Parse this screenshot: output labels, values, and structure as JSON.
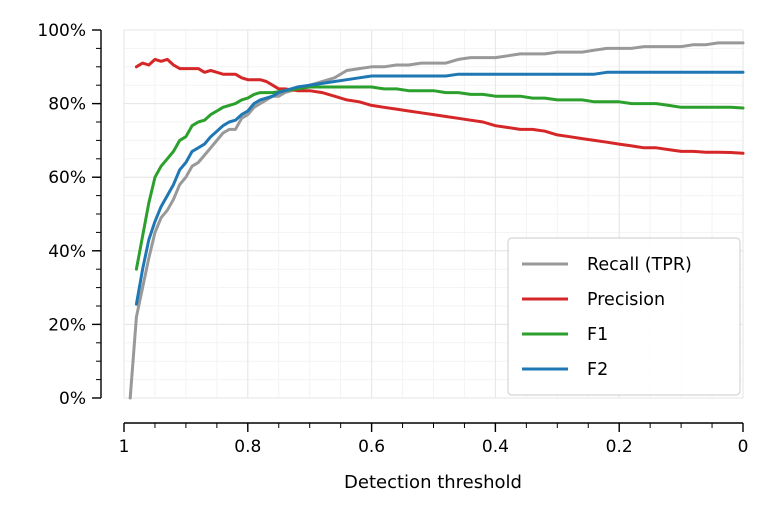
{
  "chart_data": {
    "type": "line",
    "xlabel": "Detection threshold",
    "ylabel": "",
    "xlim": [
      1,
      0
    ],
    "ylim": [
      0,
      100
    ],
    "x_reversed": true,
    "grid": true,
    "legend_position": "lower-right",
    "x_ticks": [
      1,
      0.8,
      0.6,
      0.4,
      0.2,
      0
    ],
    "x_tick_labels": [
      "1",
      "0.8",
      "0.6",
      "0.4",
      "0.2",
      "0"
    ],
    "y_ticks": [
      0,
      20,
      40,
      60,
      80,
      100
    ],
    "y_tick_labels": [
      "0%",
      "20%",
      "40%",
      "60%",
      "80%",
      "100%"
    ],
    "series": [
      {
        "name": "Recall (TPR)",
        "color": "#999999",
        "points": [
          [
            0.99,
            0
          ],
          [
            0.98,
            22
          ],
          [
            0.97,
            30
          ],
          [
            0.96,
            38
          ],
          [
            0.95,
            45
          ],
          [
            0.94,
            49
          ],
          [
            0.93,
            51
          ],
          [
            0.92,
            54
          ],
          [
            0.91,
            58
          ],
          [
            0.9,
            60
          ],
          [
            0.89,
            63
          ],
          [
            0.88,
            64
          ],
          [
            0.87,
            66
          ],
          [
            0.86,
            68
          ],
          [
            0.85,
            70
          ],
          [
            0.84,
            72
          ],
          [
            0.83,
            73
          ],
          [
            0.82,
            73
          ],
          [
            0.81,
            76
          ],
          [
            0.8,
            77
          ],
          [
            0.79,
            79
          ],
          [
            0.78,
            80
          ],
          [
            0.77,
            81
          ],
          [
            0.76,
            82
          ],
          [
            0.75,
            82
          ],
          [
            0.74,
            83
          ],
          [
            0.72,
            84
          ],
          [
            0.7,
            85
          ],
          [
            0.68,
            86
          ],
          [
            0.66,
            87
          ],
          [
            0.64,
            89
          ],
          [
            0.62,
            89.5
          ],
          [
            0.6,
            90
          ],
          [
            0.58,
            90
          ],
          [
            0.56,
            90.5
          ],
          [
            0.54,
            90.5
          ],
          [
            0.52,
            91
          ],
          [
            0.5,
            91
          ],
          [
            0.48,
            91
          ],
          [
            0.46,
            92
          ],
          [
            0.44,
            92.5
          ],
          [
            0.42,
            92.5
          ],
          [
            0.4,
            92.5
          ],
          [
            0.38,
            93
          ],
          [
            0.36,
            93.5
          ],
          [
            0.34,
            93.5
          ],
          [
            0.32,
            93.5
          ],
          [
            0.3,
            94
          ],
          [
            0.28,
            94
          ],
          [
            0.26,
            94
          ],
          [
            0.24,
            94.5
          ],
          [
            0.22,
            95
          ],
          [
            0.2,
            95
          ],
          [
            0.18,
            95
          ],
          [
            0.16,
            95.5
          ],
          [
            0.14,
            95.5
          ],
          [
            0.12,
            95.5
          ],
          [
            0.1,
            95.5
          ],
          [
            0.08,
            96
          ],
          [
            0.06,
            96
          ],
          [
            0.04,
            96.5
          ],
          [
            0.02,
            96.5
          ],
          [
            0.0,
            96.5
          ]
        ]
      },
      {
        "name": "Precision",
        "color": "#d62728",
        "points": [
          [
            0.98,
            90
          ],
          [
            0.97,
            91
          ],
          [
            0.96,
            90.5
          ],
          [
            0.95,
            92
          ],
          [
            0.94,
            91.5
          ],
          [
            0.93,
            92
          ],
          [
            0.92,
            90.5
          ],
          [
            0.91,
            89.5
          ],
          [
            0.9,
            89.5
          ],
          [
            0.89,
            89.5
          ],
          [
            0.88,
            89.5
          ],
          [
            0.87,
            88.5
          ],
          [
            0.86,
            89
          ],
          [
            0.85,
            88.5
          ],
          [
            0.84,
            88
          ],
          [
            0.83,
            88
          ],
          [
            0.82,
            88
          ],
          [
            0.81,
            87
          ],
          [
            0.8,
            86.5
          ],
          [
            0.79,
            86.5
          ],
          [
            0.78,
            86.5
          ],
          [
            0.77,
            86
          ],
          [
            0.76,
            85
          ],
          [
            0.75,
            84
          ],
          [
            0.74,
            84
          ],
          [
            0.72,
            83.5
          ],
          [
            0.7,
            83.5
          ],
          [
            0.68,
            83
          ],
          [
            0.66,
            82
          ],
          [
            0.64,
            81
          ],
          [
            0.62,
            80.5
          ],
          [
            0.6,
            79.5
          ],
          [
            0.58,
            79
          ],
          [
            0.56,
            78.5
          ],
          [
            0.54,
            78
          ],
          [
            0.52,
            77.5
          ],
          [
            0.5,
            77
          ],
          [
            0.48,
            76.5
          ],
          [
            0.46,
            76
          ],
          [
            0.44,
            75.5
          ],
          [
            0.42,
            75
          ],
          [
            0.4,
            74
          ],
          [
            0.38,
            73.5
          ],
          [
            0.36,
            73
          ],
          [
            0.34,
            73
          ],
          [
            0.32,
            72.5
          ],
          [
            0.3,
            71.5
          ],
          [
            0.28,
            71
          ],
          [
            0.26,
            70.5
          ],
          [
            0.24,
            70
          ],
          [
            0.22,
            69.5
          ],
          [
            0.2,
            69
          ],
          [
            0.18,
            68.5
          ],
          [
            0.16,
            68
          ],
          [
            0.14,
            68
          ],
          [
            0.12,
            67.5
          ],
          [
            0.1,
            67
          ],
          [
            0.08,
            67
          ],
          [
            0.06,
            66.8
          ],
          [
            0.04,
            66.8
          ],
          [
            0.02,
            66.7
          ],
          [
            0.0,
            66.5
          ]
        ]
      },
      {
        "name": "F1",
        "color": "#2ca02c",
        "points": [
          [
            0.98,
            35
          ],
          [
            0.97,
            44
          ],
          [
            0.96,
            53
          ],
          [
            0.95,
            60
          ],
          [
            0.94,
            63
          ],
          [
            0.93,
            65
          ],
          [
            0.92,
            67
          ],
          [
            0.91,
            70
          ],
          [
            0.9,
            71
          ],
          [
            0.89,
            74
          ],
          [
            0.88,
            75
          ],
          [
            0.87,
            75.5
          ],
          [
            0.86,
            77
          ],
          [
            0.85,
            78
          ],
          [
            0.84,
            79
          ],
          [
            0.83,
            79.5
          ],
          [
            0.82,
            80
          ],
          [
            0.81,
            81
          ],
          [
            0.8,
            81.5
          ],
          [
            0.79,
            82.5
          ],
          [
            0.78,
            83
          ],
          [
            0.77,
            83
          ],
          [
            0.76,
            83
          ],
          [
            0.74,
            83.5
          ],
          [
            0.72,
            84
          ],
          [
            0.7,
            84.5
          ],
          [
            0.68,
            84.5
          ],
          [
            0.66,
            84.5
          ],
          [
            0.64,
            84.5
          ],
          [
            0.62,
            84.5
          ],
          [
            0.6,
            84.5
          ],
          [
            0.58,
            84
          ],
          [
            0.56,
            84
          ],
          [
            0.54,
            83.5
          ],
          [
            0.52,
            83.5
          ],
          [
            0.5,
            83.5
          ],
          [
            0.48,
            83
          ],
          [
            0.46,
            83
          ],
          [
            0.44,
            82.5
          ],
          [
            0.42,
            82.5
          ],
          [
            0.4,
            82
          ],
          [
            0.38,
            82
          ],
          [
            0.36,
            82
          ],
          [
            0.34,
            81.5
          ],
          [
            0.32,
            81.5
          ],
          [
            0.3,
            81
          ],
          [
            0.28,
            81
          ],
          [
            0.26,
            81
          ],
          [
            0.24,
            80.5
          ],
          [
            0.22,
            80.5
          ],
          [
            0.2,
            80.5
          ],
          [
            0.18,
            80
          ],
          [
            0.16,
            80
          ],
          [
            0.14,
            80
          ],
          [
            0.12,
            79.5
          ],
          [
            0.1,
            79
          ],
          [
            0.08,
            79
          ],
          [
            0.06,
            79
          ],
          [
            0.04,
            79
          ],
          [
            0.02,
            79
          ],
          [
            0.0,
            78.8
          ]
        ]
      },
      {
        "name": "F2",
        "color": "#1f77b4",
        "points": [
          [
            0.98,
            25.5
          ],
          [
            0.97,
            35
          ],
          [
            0.96,
            43
          ],
          [
            0.95,
            48
          ],
          [
            0.94,
            52
          ],
          [
            0.93,
            55
          ],
          [
            0.92,
            58
          ],
          [
            0.91,
            62
          ],
          [
            0.9,
            64
          ],
          [
            0.89,
            67
          ],
          [
            0.88,
            68
          ],
          [
            0.87,
            69
          ],
          [
            0.86,
            71
          ],
          [
            0.85,
            72.5
          ],
          [
            0.84,
            74
          ],
          [
            0.83,
            75
          ],
          [
            0.82,
            75.5
          ],
          [
            0.81,
            77
          ],
          [
            0.8,
            78
          ],
          [
            0.79,
            80
          ],
          [
            0.78,
            81
          ],
          [
            0.77,
            81.5
          ],
          [
            0.76,
            82
          ],
          [
            0.75,
            83
          ],
          [
            0.74,
            83.5
          ],
          [
            0.72,
            84.5
          ],
          [
            0.7,
            85
          ],
          [
            0.68,
            85.5
          ],
          [
            0.66,
            86
          ],
          [
            0.64,
            86.5
          ],
          [
            0.62,
            87
          ],
          [
            0.6,
            87.5
          ],
          [
            0.58,
            87.5
          ],
          [
            0.56,
            87.5
          ],
          [
            0.54,
            87.5
          ],
          [
            0.52,
            87.5
          ],
          [
            0.5,
            87.5
          ],
          [
            0.48,
            87.5
          ],
          [
            0.46,
            88
          ],
          [
            0.44,
            88
          ],
          [
            0.42,
            88
          ],
          [
            0.4,
            88
          ],
          [
            0.38,
            88
          ],
          [
            0.36,
            88
          ],
          [
            0.34,
            88
          ],
          [
            0.32,
            88
          ],
          [
            0.3,
            88
          ],
          [
            0.28,
            88
          ],
          [
            0.26,
            88
          ],
          [
            0.24,
            88
          ],
          [
            0.22,
            88.5
          ],
          [
            0.2,
            88.5
          ],
          [
            0.18,
            88.5
          ],
          [
            0.16,
            88.5
          ],
          [
            0.14,
            88.5
          ],
          [
            0.12,
            88.5
          ],
          [
            0.1,
            88.5
          ],
          [
            0.08,
            88.5
          ],
          [
            0.06,
            88.5
          ],
          [
            0.04,
            88.5
          ],
          [
            0.02,
            88.5
          ],
          [
            0.0,
            88.5
          ]
        ]
      }
    ]
  }
}
